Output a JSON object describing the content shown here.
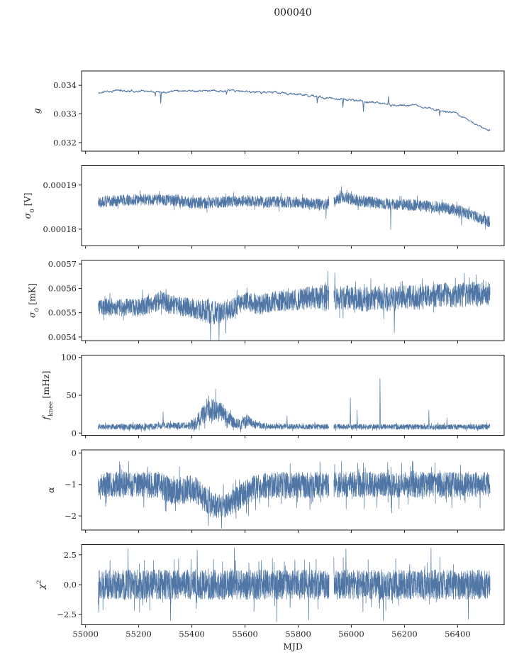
{
  "title": "000040",
  "chart_data": {
    "type": "line",
    "title": "000040",
    "xlabel": "MJD",
    "xlim": [
      54985,
      56575
    ],
    "x_data_range": [
      55048,
      56522
    ],
    "xticks": [
      {
        "v": 55000,
        "label": "55000"
      },
      {
        "v": 55200,
        "label": "55200"
      },
      {
        "v": 55400,
        "label": "55400"
      },
      {
        "v": 55600,
        "label": "55600"
      },
      {
        "v": 55800,
        "label": "55800"
      },
      {
        "v": 56000,
        "label": "56000"
      },
      {
        "v": 56200,
        "label": "56200"
      },
      {
        "v": 56400,
        "label": "56400"
      }
    ],
    "line_color": "#4f76a5",
    "axis_color": "#1c1c1c",
    "background": "#ffffff",
    "gap_x": [
      55916,
      55934
    ],
    "legend": "none",
    "grid": false,
    "panels": [
      {
        "id": "g",
        "ylabel_text": "g",
        "ylabel_parts": [
          {
            "t": "g",
            "style": "italic"
          }
        ],
        "ylim": [
          0.0317,
          0.0345
        ],
        "yticks": [
          {
            "v": 0.032,
            "label": "0.032"
          },
          {
            "v": 0.033,
            "label": "0.033"
          },
          {
            "v": 0.034,
            "label": "0.034"
          }
        ],
        "seed": 11,
        "points": 1300,
        "mode": "smooth",
        "amp": 4.5e-05,
        "lw": 1.0,
        "gap": false,
        "floor": null,
        "tail": null,
        "baseline": [
          [
            55050,
            0.03372
          ],
          [
            55080,
            0.03379
          ],
          [
            55120,
            0.03382
          ],
          [
            55180,
            0.0338
          ],
          [
            55240,
            0.03381
          ],
          [
            55300,
            0.03379
          ],
          [
            55360,
            0.03383
          ],
          [
            55420,
            0.03381
          ],
          [
            55480,
            0.0338
          ],
          [
            55540,
            0.0338
          ],
          [
            55600,
            0.03378
          ],
          [
            55660,
            0.03377
          ],
          [
            55720,
            0.03373
          ],
          [
            55780,
            0.03369
          ],
          [
            55840,
            0.03364
          ],
          [
            55900,
            0.03357
          ],
          [
            55950,
            0.03353
          ],
          [
            56000,
            0.03349
          ],
          [
            56050,
            0.03343
          ],
          [
            56100,
            0.03338
          ],
          [
            56150,
            0.03331
          ],
          [
            56200,
            0.03331
          ],
          [
            56250,
            0.03327
          ],
          [
            56300,
            0.03319
          ],
          [
            56350,
            0.0331
          ],
          [
            56400,
            0.03299
          ],
          [
            56440,
            0.0328
          ],
          [
            56470,
            0.03262
          ],
          [
            56510,
            0.03244
          ]
        ],
        "noise_env": null,
        "spikes": [
          {
            "x": 55262,
            "dy": -0.00018
          },
          {
            "x": 55283,
            "dy": -0.00042
          },
          {
            "x": 55530,
            "dy": -0.00012
          },
          {
            "x": 55872,
            "dy": -0.00022
          },
          {
            "x": 55968,
            "dy": -0.00028
          },
          {
            "x": 56045,
            "dy": -0.00035
          },
          {
            "x": 56140,
            "dy": 0.00028
          },
          {
            "x": 56332,
            "dy": -0.0002
          }
        ]
      },
      {
        "id": "sigma0-v",
        "ylabel_text": "σ0 [V]",
        "ylabel_parts": [
          {
            "t": "σ",
            "style": "italic"
          },
          {
            "t": "0",
            "style": "sub"
          },
          {
            "t": " [V]",
            "style": "normal"
          }
        ],
        "ylim": [
          0.0001762,
          0.0001944
        ],
        "yticks": [
          {
            "v": 0.00018,
            "label": "0.00018"
          },
          {
            "v": 0.00019,
            "label": "0.00019"
          }
        ],
        "seed": 22,
        "points": 2600,
        "mode": "noise",
        "amp": 1.3e-06,
        "lw": 0.7,
        "gap": true,
        "floor": null,
        "tail": [
          0.03,
          1.7
        ],
        "baseline": [
          [
            55050,
            0.0001862
          ],
          [
            55150,
            0.0001866
          ],
          [
            55250,
            0.0001867
          ],
          [
            55330,
            0.0001866
          ],
          [
            55390,
            0.000186
          ],
          [
            55450,
            0.0001859
          ],
          [
            55520,
            0.0001862
          ],
          [
            55600,
            0.0001864
          ],
          [
            55680,
            0.0001862
          ],
          [
            55760,
            0.0001861
          ],
          [
            55830,
            0.0001859
          ],
          [
            55890,
            0.0001856
          ],
          [
            55920,
            0.0001855
          ],
          [
            55945,
            0.0001865
          ],
          [
            55965,
            0.0001874
          ],
          [
            55985,
            0.0001871
          ],
          [
            56010,
            0.0001866
          ],
          [
            56060,
            0.0001862
          ],
          [
            56120,
            0.0001858
          ],
          [
            56180,
            0.0001856
          ],
          [
            56240,
            0.0001855
          ],
          [
            56300,
            0.0001851
          ],
          [
            56360,
            0.0001847
          ],
          [
            56420,
            0.000184
          ],
          [
            56460,
            0.000183
          ],
          [
            56510,
            0.0001817
          ]
        ],
        "noise_env": null,
        "spikes": [
          {
            "x": 55345,
            "dy": 1.4e-06
          },
          {
            "x": 55905,
            "dy": -3.2e-06
          },
          {
            "x": 55962,
            "dy": 2.4e-06
          },
          {
            "x": 56148,
            "dy": -5.8e-06
          },
          {
            "x": 56415,
            "dy": -3.2e-06
          }
        ]
      },
      {
        "id": "sigma0-mk",
        "ylabel_text": "σ0 [mK]",
        "ylabel_parts": [
          {
            "t": "σ",
            "style": "italic"
          },
          {
            "t": "0",
            "style": "sub"
          },
          {
            "t": " [mK]",
            "style": "normal"
          }
        ],
        "ylim": [
          0.005385,
          0.005715
        ],
        "yticks": [
          {
            "v": 0.0054,
            "label": "0.0054"
          },
          {
            "v": 0.0055,
            "label": "0.0055"
          },
          {
            "v": 0.0056,
            "label": "0.0056"
          },
          {
            "v": 0.0057,
            "label": "0.0057"
          }
        ],
        "seed": 33,
        "points": 2600,
        "mode": "noise",
        "amp": 4e-05,
        "lw": 0.7,
        "gap": true,
        "floor": null,
        "tail": [
          0.04,
          1.7
        ],
        "baseline": [
          [
            55050,
            0.005525
          ],
          [
            55120,
            0.00552
          ],
          [
            55200,
            0.00552
          ],
          [
            55260,
            0.005535
          ],
          [
            55285,
            0.005558
          ],
          [
            55310,
            0.005535
          ],
          [
            55360,
            0.005525
          ],
          [
            55420,
            0.005515
          ],
          [
            55460,
            0.005505
          ],
          [
            55500,
            0.005495
          ],
          [
            55540,
            0.00551
          ],
          [
            55580,
            0.005535
          ],
          [
            55620,
            0.005545
          ],
          [
            55650,
            0.00553
          ],
          [
            55700,
            0.005545
          ],
          [
            55750,
            0.00555
          ],
          [
            55800,
            0.005555
          ],
          [
            55850,
            0.00556
          ],
          [
            55900,
            0.00556
          ],
          [
            55950,
            0.005565
          ],
          [
            56000,
            0.00556
          ],
          [
            56050,
            0.005555
          ],
          [
            56100,
            0.00556
          ],
          [
            56150,
            0.005555
          ],
          [
            56200,
            0.005565
          ],
          [
            56250,
            0.00556
          ],
          [
            56300,
            0.00557
          ],
          [
            56350,
            0.005575
          ],
          [
            56400,
            0.00557
          ],
          [
            56450,
            0.005575
          ],
          [
            56510,
            0.00558
          ]
        ],
        "noise_env": [
          [
            55050,
            3.5e-05
          ],
          [
            55400,
            4e-05
          ],
          [
            55460,
            5e-05
          ],
          [
            55560,
            4e-05
          ],
          [
            55800,
            4.5e-05
          ],
          [
            55900,
            5.5e-05
          ],
          [
            56000,
            5e-05
          ],
          [
            56510,
            5e-05
          ]
        ],
        "spikes": [
          {
            "x": 55215,
            "dy": 7e-05
          },
          {
            "x": 55470,
            "dy": -0.00012
          },
          {
            "x": 55502,
            "dy": -0.00011
          },
          {
            "x": 55528,
            "dy": -9e-05
          },
          {
            "x": 55912,
            "dy": 0.00011
          },
          {
            "x": 55938,
            "dy": 0.0001
          },
          {
            "x": 56162,
            "dy": -0.00014
          },
          {
            "x": 56425,
            "dy": 9e-05
          },
          {
            "x": 56470,
            "dy": 8e-05
          }
        ]
      },
      {
        "id": "fknee",
        "ylabel_text": "fknee [mHz]",
        "ylabel_parts": [
          {
            "t": "f",
            "style": "italic"
          },
          {
            "t": "knee",
            "style": "sub"
          },
          {
            "t": " [mHz]",
            "style": "normal"
          }
        ],
        "ylim": [
          -3,
          103
        ],
        "yticks": [
          {
            "v": 0,
            "label": "0"
          },
          {
            "v": 50,
            "label": "50"
          },
          {
            "v": 100,
            "label": "100"
          }
        ],
        "seed": 44,
        "points": 2600,
        "mode": "noise",
        "amp": 3.5,
        "lw": 0.7,
        "gap": true,
        "floor": 1.2,
        "tail": [
          0.05,
          1.8
        ],
        "baseline": [
          [
            55050,
            8
          ],
          [
            55250,
            8.5
          ],
          [
            55290,
            10
          ],
          [
            55330,
            9
          ],
          [
            55380,
            10
          ],
          [
            55415,
            12
          ],
          [
            55440,
            24
          ],
          [
            55465,
            33
          ],
          [
            55490,
            31
          ],
          [
            55515,
            27
          ],
          [
            55540,
            18
          ],
          [
            55565,
            12
          ],
          [
            55590,
            13
          ],
          [
            55612,
            17
          ],
          [
            55635,
            11
          ],
          [
            55680,
            9
          ],
          [
            55800,
            8.5
          ],
          [
            56510,
            8
          ]
        ],
        "noise_env": [
          [
            55050,
            3.5
          ],
          [
            55380,
            4.5
          ],
          [
            55430,
            11
          ],
          [
            55465,
            17
          ],
          [
            55500,
            15
          ],
          [
            55535,
            10
          ],
          [
            55570,
            6
          ],
          [
            55600,
            10
          ],
          [
            55630,
            5
          ],
          [
            55700,
            3.5
          ],
          [
            56510,
            3.5
          ]
        ],
        "spikes": [
          {
            "x": 55292,
            "dy": 18
          },
          {
            "x": 55758,
            "dy": 14
          },
          {
            "x": 55996,
            "dy": 38
          },
          {
            "x": 56022,
            "dy": 22
          },
          {
            "x": 56108,
            "dy": 64
          },
          {
            "x": 56292,
            "dy": 22
          },
          {
            "x": 56360,
            "dy": 12
          }
        ]
      },
      {
        "id": "alpha",
        "ylabel_text": "α",
        "ylabel_parts": [
          {
            "t": "α",
            "style": "italic"
          }
        ],
        "ylim": [
          -2.45,
          0.1
        ],
        "yticks": [
          {
            "v": 0,
            "label": "0"
          },
          {
            "v": -1,
            "label": "−1"
          },
          {
            "v": -2,
            "label": "−2"
          }
        ],
        "seed": 55,
        "points": 2800,
        "mode": "noise",
        "amp": 0.4,
        "lw": 0.7,
        "gap": true,
        "floor": null,
        "tail": [
          0.05,
          1.9
        ],
        "baseline": [
          [
            55050,
            -1.0
          ],
          [
            55280,
            -1.02
          ],
          [
            55330,
            -1.25
          ],
          [
            55370,
            -1.18
          ],
          [
            55410,
            -1.12
          ],
          [
            55445,
            -1.45
          ],
          [
            55480,
            -1.68
          ],
          [
            55520,
            -1.7
          ],
          [
            55555,
            -1.55
          ],
          [
            55590,
            -1.35
          ],
          [
            55630,
            -1.12
          ],
          [
            55700,
            -1.02
          ],
          [
            56510,
            -1.0
          ]
        ],
        "noise_env": [
          [
            55050,
            0.4
          ],
          [
            55430,
            0.44
          ],
          [
            55520,
            0.38
          ],
          [
            55620,
            0.42
          ],
          [
            56510,
            0.4
          ]
        ],
        "spikes": [
          {
            "x": 55338,
            "dy": -0.6
          },
          {
            "x": 55462,
            "dy": -0.75
          },
          {
            "x": 55512,
            "dy": -0.7
          },
          {
            "x": 55605,
            "dy": -0.65
          },
          {
            "x": 56152,
            "dy": -0.9
          },
          {
            "x": 56052,
            "dy": 0.55
          }
        ]
      },
      {
        "id": "chi2",
        "ylabel_text": "χ2",
        "ylabel_parts": [
          {
            "t": "χ",
            "style": "italic"
          },
          {
            "t": "2",
            "style": "sup"
          }
        ],
        "ylim": [
          -3.35,
          3.35
        ],
        "yticks": [
          {
            "v": 2.5,
            "label": "2.5"
          },
          {
            "v": 0,
            "label": "0.0"
          },
          {
            "v": -2.5,
            "label": "−2.5"
          }
        ],
        "seed": 66,
        "points": 3000,
        "mode": "noise",
        "amp": 1.25,
        "lw": 0.7,
        "gap": true,
        "floor": null,
        "tail": [
          0.04,
          1.85
        ],
        "baseline": [
          [
            55050,
            0
          ],
          [
            56510,
            0
          ]
        ],
        "noise_env": null,
        "spikes": [
          {
            "x": 55160,
            "dy": 3.0
          },
          {
            "x": 55320,
            "dy": -3.0
          },
          {
            "x": 55420,
            "dy": 2.9
          },
          {
            "x": 55560,
            "dy": 3.1
          },
          {
            "x": 55720,
            "dy": -3.1
          },
          {
            "x": 55840,
            "dy": -2.95
          },
          {
            "x": 55980,
            "dy": 3.0
          },
          {
            "x": 56120,
            "dy": -3.0
          },
          {
            "x": 56300,
            "dy": 3.05
          },
          {
            "x": 56440,
            "dy": -2.9
          }
        ]
      }
    ]
  }
}
